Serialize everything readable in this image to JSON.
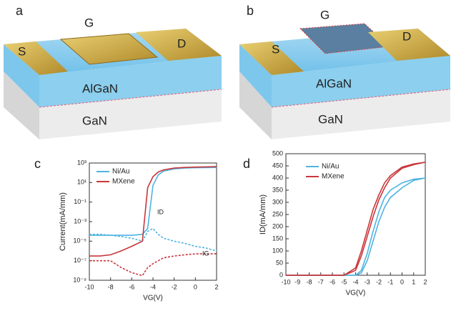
{
  "schematics": [
    {
      "panel": "a",
      "gate": "G",
      "source": "S",
      "drain": "D",
      "barrier": "AlGaN",
      "substrate": "GaN"
    },
    {
      "panel": "b",
      "gate": "G",
      "source": "S",
      "drain": "D",
      "barrier": "AlGaN",
      "substrate": "GaN"
    }
  ],
  "chart_data": [
    {
      "type": "line",
      "panel": "c",
      "x_label": "VG(V)",
      "y_label": "Current(mA/mm)",
      "log_y": true,
      "annotations": [
        "ID",
        "IG"
      ],
      "x": [
        -10,
        -9,
        -8,
        -7,
        -6,
        -5,
        -4.5,
        -4,
        -3.5,
        -3,
        -2,
        -1,
        0,
        1,
        2
      ],
      "series": [
        {
          "name": "Ni/Au",
          "color": "#4fb3e0",
          "values": [
            4e-05,
            4e-05,
            4e-05,
            4e-05,
            4e-05,
            5e-05,
            0.0002,
            5,
            60,
            150,
            250,
            300,
            330,
            340,
            350
          ],
          "gate_values": [
            5e-05,
            5e-05,
            4e-05,
            3e-05,
            2e-05,
            1e-05,
            0.0001,
            0.0002,
            5e-05,
            2e-05,
            1e-05,
            6e-06,
            3e-06,
            2e-06,
            1e-06
          ]
        },
        {
          "name": "MXene",
          "color": "#c8373b",
          "values": [
            3e-07,
            3e-07,
            4e-07,
            1e-06,
            3e-06,
            1e-05,
            3,
            40,
            120,
            200,
            300,
            350,
            380,
            400,
            420
          ],
          "gate_values": [
            1e-07,
            1e-07,
            1e-07,
            2e-08,
            6e-09,
            3e-09,
            2e-08,
            5e-08,
            1e-07,
            2e-07,
            3e-07,
            4e-07,
            5e-07,
            5e-07,
            5e-07
          ]
        }
      ],
      "xlim": [
        -10,
        2
      ],
      "xticks": [
        -10,
        -8,
        -6,
        -4,
        -2,
        0,
        2
      ],
      "ylim": [
        1e-09,
        1000
      ],
      "yticks": [
        {
          "value": 1e-09,
          "label": "10⁻⁹"
        },
        {
          "value": 1e-07,
          "label": "10⁻⁷"
        },
        {
          "value": 1e-05,
          "label": "10⁻⁵"
        },
        {
          "value": 0.001,
          "label": "10⁻³"
        },
        {
          "value": 0.1,
          "label": "10⁻¹"
        },
        {
          "value": 10,
          "label": "10¹"
        },
        {
          "value": 1000,
          "label": "10³"
        }
      ]
    },
    {
      "type": "line",
      "panel": "d",
      "x_label": "VG(V)",
      "y_label": "ID(mA/mm)",
      "x": [
        -10,
        -5,
        -4,
        -3.5,
        -3,
        -2.5,
        -2,
        -1.5,
        -1,
        0,
        1,
        2
      ],
      "series": [
        {
          "name": "Ni/Au",
          "color": "#4fb3e0",
          "values": [
            0,
            0,
            0,
            10,
            60,
            140,
            220,
            280,
            320,
            360,
            390,
            400
          ],
          "reverse_values": [
            0,
            0,
            0,
            20,
            90,
            180,
            260,
            320,
            350,
            380,
            395,
            400
          ]
        },
        {
          "name": "MXene",
          "color": "#c8373b",
          "values": [
            0,
            0,
            20,
            80,
            160,
            240,
            310,
            360,
            400,
            440,
            455,
            465
          ],
          "reverse_values": [
            0,
            0,
            30,
            100,
            185,
            270,
            330,
            380,
            410,
            445,
            458,
            465
          ]
        }
      ],
      "xlim": [
        -10,
        2
      ],
      "xticks": [
        -10,
        -9,
        -8,
        -7,
        -6,
        -5,
        -4,
        -3,
        -2,
        -1,
        0,
        1,
        2
      ],
      "ylim": [
        0,
        500
      ],
      "yticks": [
        0,
        50,
        100,
        150,
        200,
        250,
        300,
        350,
        400,
        450,
        500
      ]
    }
  ]
}
